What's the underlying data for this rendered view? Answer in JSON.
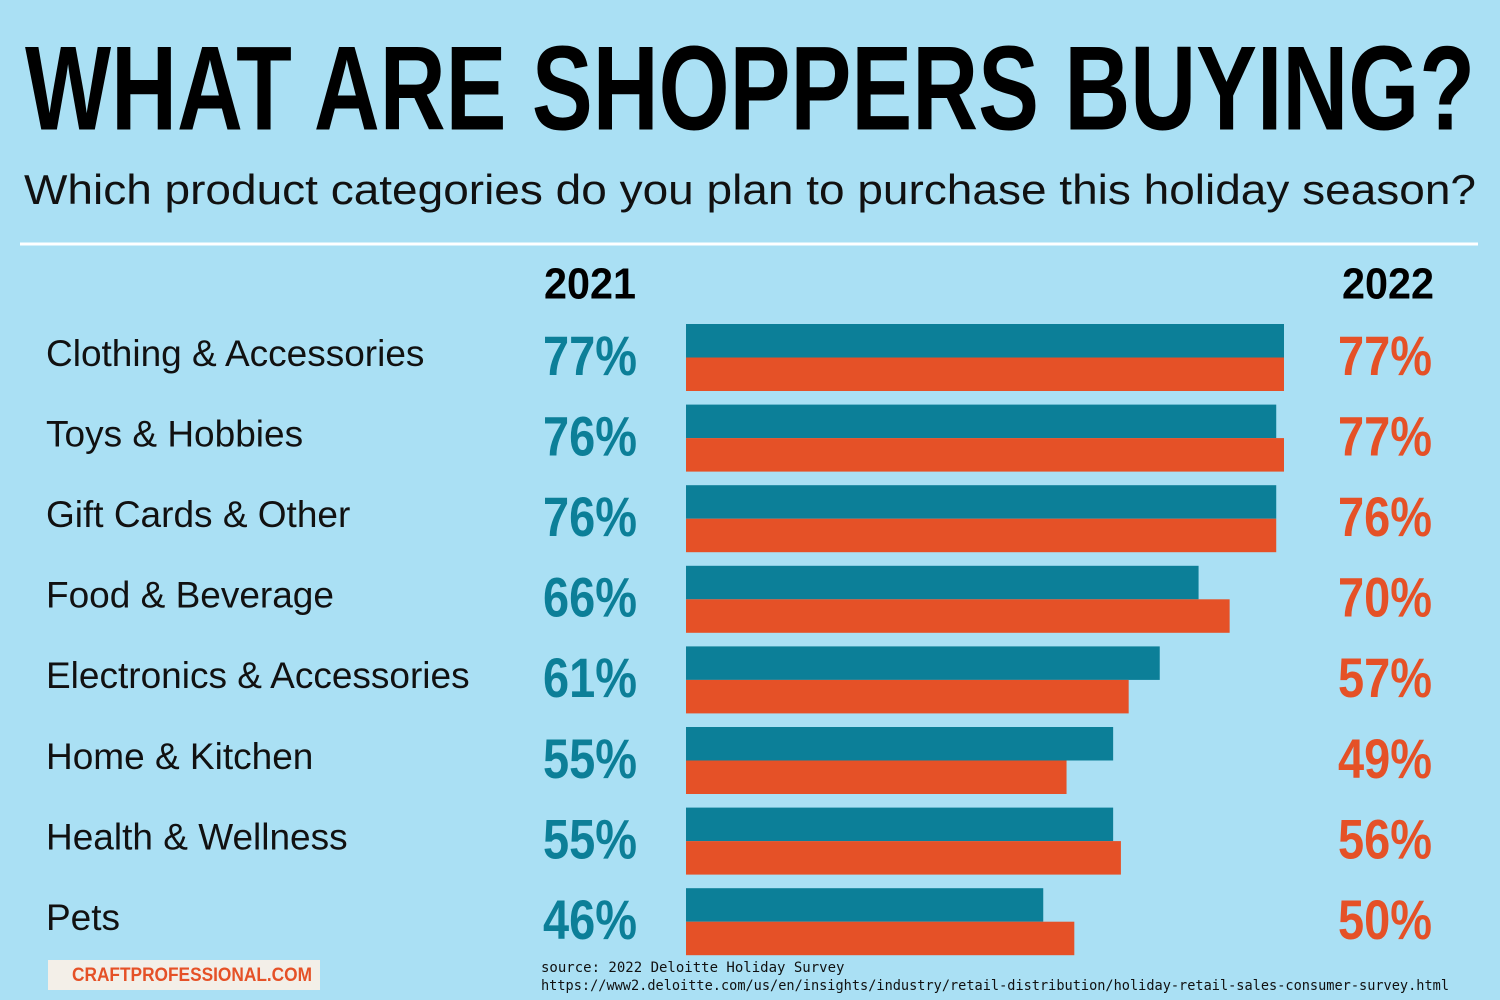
{
  "chart_data": {
    "type": "bar",
    "orientation": "horizontal",
    "title": "WHAT ARE SHOPPERS BUYING?",
    "subtitle": "Which product categories do you plan to purchase this holiday season?",
    "categories": [
      "Clothing & Accessories",
      "Toys & Hobbies",
      "Gift Cards & Other",
      "Food & Beverage",
      "Electronics & Accessories",
      "Home & Kitchen",
      "Health & Wellness",
      "Pets"
    ],
    "series": [
      {
        "name": "2021",
        "color": "#0c7f98",
        "values": [
          77,
          76,
          76,
          66,
          61,
          55,
          55,
          46
        ],
        "value_labels": [
          "77%",
          "76%",
          "76%",
          "66%",
          "61%",
          "55%",
          "55%",
          "46%"
        ]
      },
      {
        "name": "2022",
        "color": "#e55127",
        "values": [
          77,
          77,
          76,
          70,
          57,
          49,
          56,
          50
        ],
        "value_labels": [
          "77%",
          "77%",
          "76%",
          "70%",
          "57%",
          "49%",
          "56%",
          "50%"
        ]
      }
    ],
    "source": "source: 2022 Deloitte Holiday Survey",
    "source_url": "https://www2.deloitte.com/us/en/insights/industry/retail-distribution/holiday-retail-sales-consumer-survey.html",
    "logo_text": "CRAFTPROFESSIONAL.COM"
  }
}
